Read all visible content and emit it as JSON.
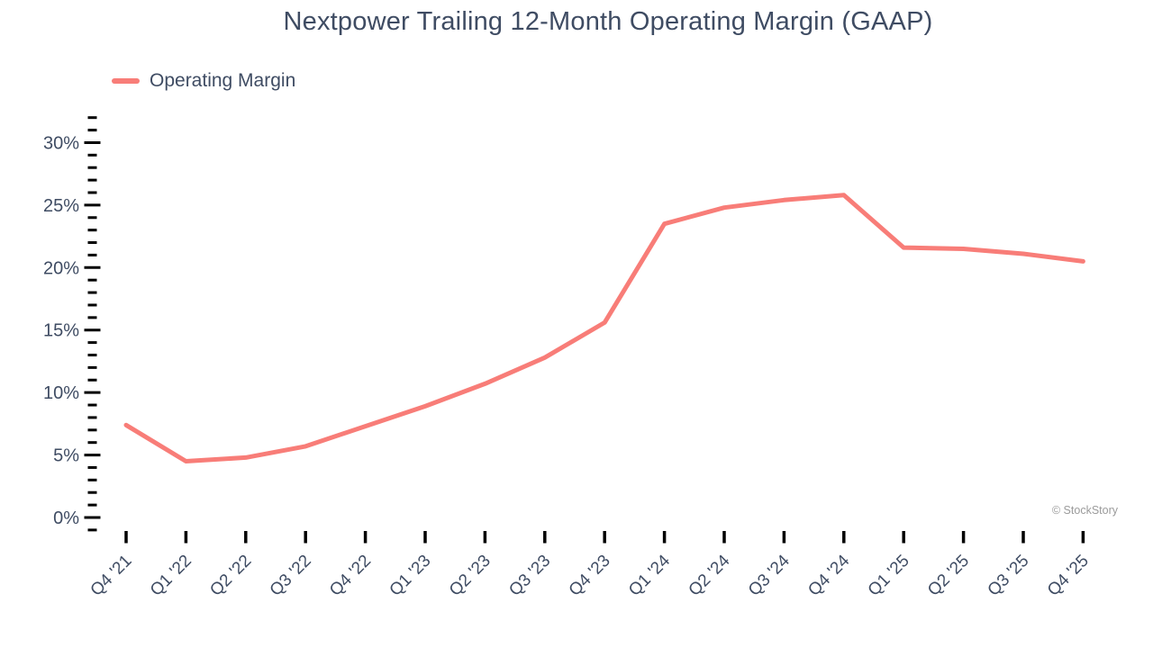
{
  "watermark": "© StockStory",
  "colors": {
    "line": "#F87D78",
    "text": "#3F4C63",
    "tick": "#000000",
    "watermark": "#9B9B9B"
  },
  "chart_data": {
    "type": "line",
    "title": "Nextpower Trailing 12-Month Operating Margin (GAAP)",
    "categories": [
      "Q4 '21",
      "Q1 '22",
      "Q2 '22",
      "Q3 '22",
      "Q4 '22",
      "Q1 '23",
      "Q2 '23",
      "Q3 '23",
      "Q4 '23",
      "Q1 '24",
      "Q2 '24",
      "Q3 '24",
      "Q4 '24",
      "Q1 '25",
      "Q2 '25",
      "Q3 '25",
      "Q4 '25"
    ],
    "series": [
      {
        "name": "Operating Margin",
        "values": [
          7.4,
          4.5,
          4.8,
          5.7,
          7.3,
          8.9,
          10.7,
          12.8,
          15.6,
          23.5,
          24.8,
          25.4,
          25.8,
          21.6,
          21.5,
          21.1,
          20.5
        ]
      }
    ],
    "xlabel": "",
    "ylabel": "",
    "unit": "%",
    "y_tick_suffix": "%",
    "y_major_ticks": [
      0,
      5,
      10,
      15,
      20,
      25,
      30
    ],
    "y_minor_step": 1,
    "y_axis_range": [
      -1,
      32
    ],
    "grid": false,
    "legend_position": "top-left"
  }
}
